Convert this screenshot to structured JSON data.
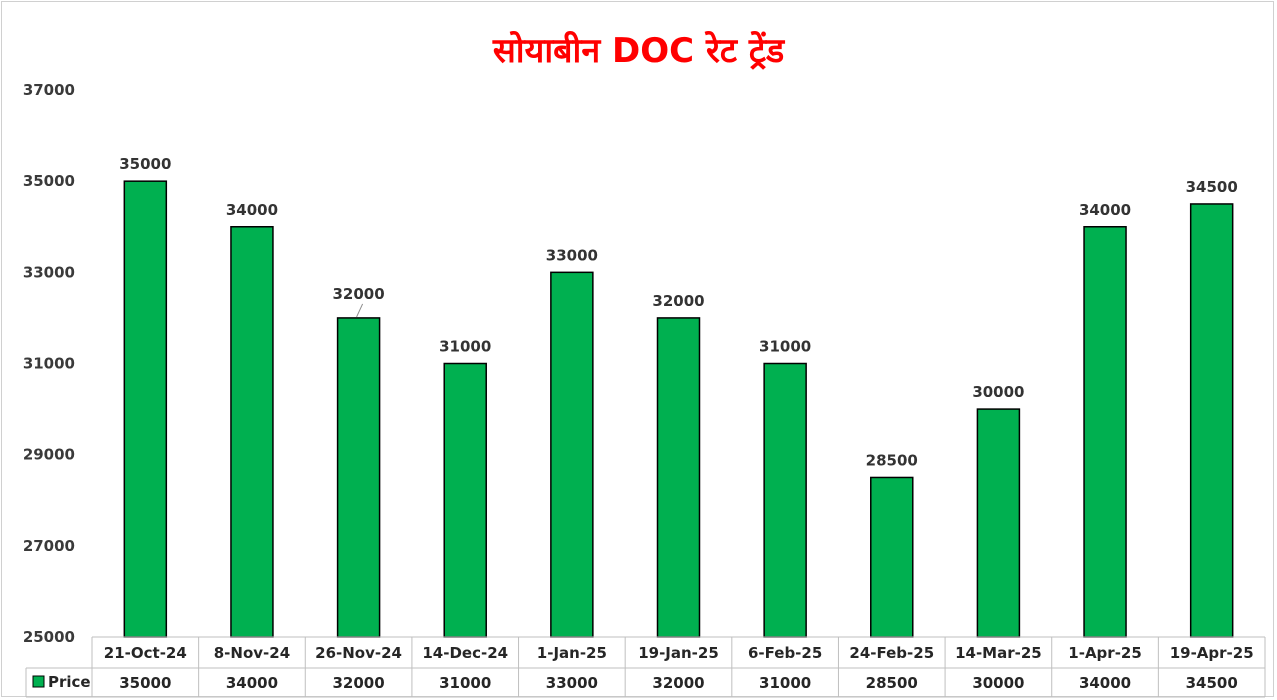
{
  "chart_data": {
    "type": "bar",
    "title": "सोयाबीन DOC रेट ट्रेंड",
    "categories": [
      "21-Oct-24",
      "8-Nov-24",
      "26-Nov-24",
      "14-Dec-24",
      "1-Jan-25",
      "19-Jan-25",
      "6-Feb-25",
      "24-Feb-25",
      "14-Mar-25",
      "1-Apr-25",
      "19-Apr-25"
    ],
    "series": [
      {
        "name": "Price",
        "values": [
          35000,
          34000,
          32000,
          31000,
          33000,
          32000,
          31000,
          28500,
          30000,
          34000,
          34500
        ]
      }
    ],
    "yticks": [
      "25000",
      "27000",
      "29000",
      "31000",
      "33000",
      "35000",
      "37000"
    ],
    "ylim": [
      25000,
      37000
    ],
    "data_labels": true,
    "data_table": true,
    "grid": false,
    "colors": {
      "bar": "#00b050",
      "bar_outline": "#000000",
      "title": "#ff0000"
    }
  }
}
